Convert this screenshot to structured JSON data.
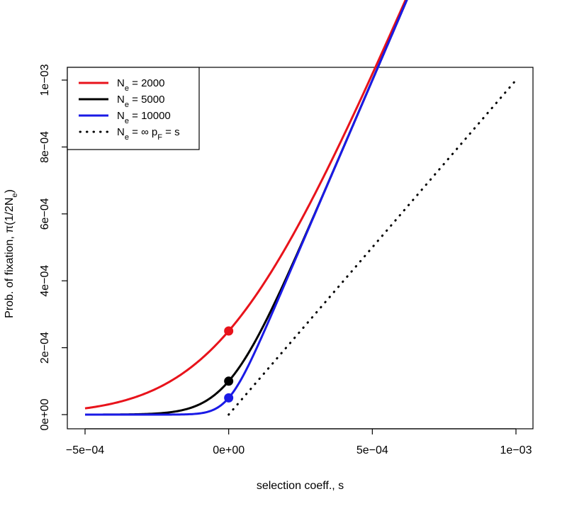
{
  "chart_data": {
    "type": "line",
    "title": "",
    "xlabel": "selection coeff., s",
    "ylabel_main": "Prob. of fixation, π(1/2N",
    "ylabel_sub": "e",
    "ylabel_tail": ")",
    "xlim": [
      -0.0005,
      0.001
    ],
    "ylim": [
      0,
      0.001
    ],
    "x_ticks": [
      -0.0005,
      0,
      0.0005,
      0.001
    ],
    "x_tick_labels": [
      "−5e−04",
      "0e+00",
      "5e−04",
      "1e−03"
    ],
    "y_ticks": [
      0,
      0.0002,
      0.0004,
      0.0006,
      0.0008,
      0.001
    ],
    "y_tick_labels": [
      "0e+00",
      "2e−04",
      "4e−04",
      "6e−04",
      "8e−04",
      "1e−03"
    ],
    "grid": false,
    "legend_position": "top-left",
    "series": [
      {
        "name": "Ne = 2000",
        "legend_base": "N",
        "legend_sub": "e",
        "legend_tail": " = 2000",
        "Ne": 2000,
        "color": "#e8131b",
        "style": "solid",
        "point": {
          "x": 0,
          "y": 0.00025
        }
      },
      {
        "name": "Ne = 5000",
        "legend_base": "N",
        "legend_sub": "e",
        "legend_tail": " = 5000",
        "Ne": 5000,
        "color": "#000000",
        "style": "solid",
        "point": {
          "x": 0,
          "y": 0.0001
        }
      },
      {
        "name": "Ne = 10000",
        "legend_base": "N",
        "legend_sub": "e",
        "legend_tail": " = 10000",
        "Ne": 10000,
        "color": "#1a1ae6",
        "style": "solid",
        "point": {
          "x": 0,
          "y": 5e-05
        }
      },
      {
        "name": "Ne = ∞ pF = s",
        "legend_base": "N",
        "legend_sub": "e",
        "legend_tail": " = ∞ p",
        "legend_sub2": "F",
        "legend_tail2": " = s",
        "Ne": null,
        "color": "#000000",
        "style": "dotted",
        "point": null
      }
    ]
  }
}
